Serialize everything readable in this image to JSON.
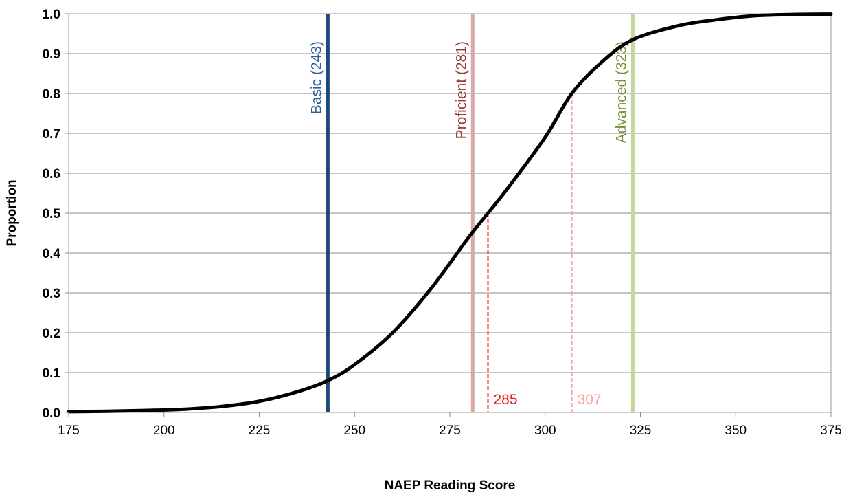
{
  "chart_data": {
    "type": "line",
    "title": "",
    "xlabel": "NAEP Reading Score",
    "ylabel": "Proportion",
    "xlim": [
      175,
      375
    ],
    "ylim": [
      0,
      1
    ],
    "grid": true,
    "x_ticks": [
      175,
      200,
      225,
      250,
      275,
      300,
      325,
      350,
      375
    ],
    "x_tick_labels": [
      "175",
      "200",
      "225",
      "250",
      "275",
      "300",
      "325",
      "350",
      "375"
    ],
    "y_ticks": [
      0,
      0.1,
      0.2,
      0.3,
      0.4,
      0.5,
      0.6,
      0.7,
      0.8,
      0.9,
      1.0
    ],
    "y_tick_labels": [
      "0.0",
      "0.1",
      "0.2",
      "0.3",
      "0.4",
      "0.5",
      "0.6",
      "0.7",
      "0.8",
      "0.9",
      "1.0"
    ],
    "series": [
      {
        "color": "#000000",
        "x": [
          175,
          185,
          195,
          205,
          215,
          225,
          235,
          243,
          250,
          260,
          270,
          280,
          285,
          290,
          300,
          307,
          315,
          323,
          335,
          345,
          355,
          365,
          375
        ],
        "y": [
          0.002,
          0.003,
          0.005,
          0.008,
          0.015,
          0.028,
          0.052,
          0.08,
          0.12,
          0.2,
          0.31,
          0.44,
          0.5,
          0.56,
          0.69,
          0.8,
          0.88,
          0.935,
          0.97,
          0.985,
          0.995,
          0.998,
          0.999
        ]
      }
    ],
    "vertical_lines": [
      {
        "x": 243,
        "label": "Basic (243)",
        "color": "#1f497d",
        "text_color": "#2e5e96"
      },
      {
        "x": 281,
        "label": "Proficient (281)",
        "color": "#d9a9a7",
        "text_color": "#953735"
      },
      {
        "x": 323,
        "label": "Advanced (323)",
        "color": "#c3d69b",
        "text_color": "#76923c"
      }
    ],
    "reference_lines": [
      {
        "x": 285,
        "y": 0.5,
        "label": "285",
        "color": "#e02020"
      },
      {
        "x": 307,
        "y": 0.8,
        "label": "307",
        "color": "#f4a3a3"
      }
    ]
  }
}
